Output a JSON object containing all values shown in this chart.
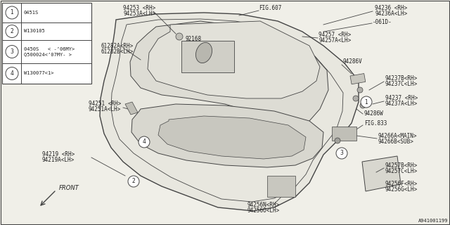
{
  "bg_color": "#f0efe8",
  "line_color": "#444444",
  "text_color": "#222222",
  "part_number_ref": "A941001199",
  "legend_items": [
    {
      "num": "1",
      "code": "0451S"
    },
    {
      "num": "2",
      "code": "W130105"
    },
    {
      "num": "3",
      "code": "0450S   < -’06MY>\nQ500024<’07MY- >"
    },
    {
      "num": "4",
      "code": "W130077<1>"
    }
  ],
  "fig_size": [
    6.4,
    3.2
  ],
  "dpi": 100
}
